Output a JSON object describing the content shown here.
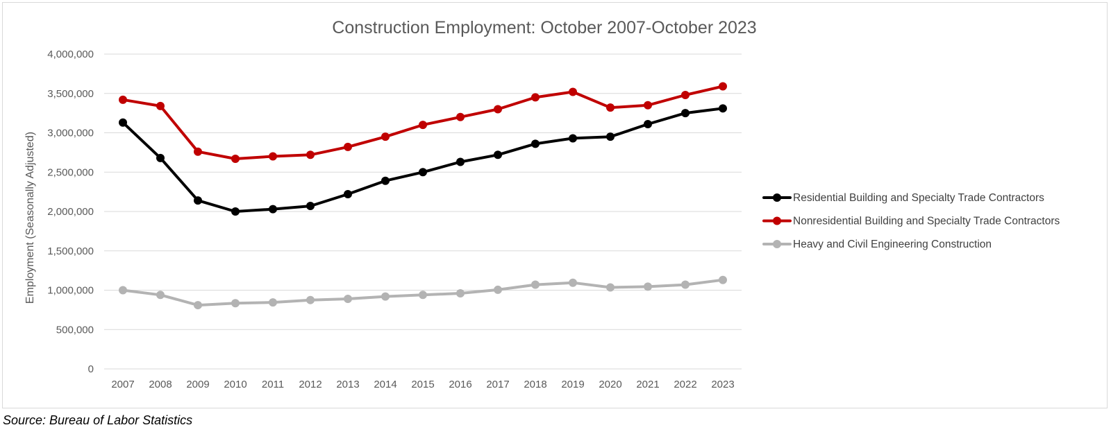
{
  "chart_data": {
    "type": "line",
    "title": "Construction Employment: October 2007-October 2023",
    "xlabel": "",
    "ylabel": "Employment (Seasonally Adjusted)",
    "x": [
      "2007",
      "2008",
      "2009",
      "2010",
      "2011",
      "2012",
      "2013",
      "2014",
      "2015",
      "2016",
      "2017",
      "2018",
      "2019",
      "2020",
      "2021",
      "2022",
      "2023"
    ],
    "ylim": [
      0,
      4000000
    ],
    "yticks": [
      0,
      500000,
      1000000,
      1500000,
      2000000,
      2500000,
      3000000,
      3500000,
      4000000
    ],
    "ytick_labels": [
      "0",
      "500,000",
      "1,000,000",
      "1,500,000",
      "2,000,000",
      "2,500,000",
      "3,000,000",
      "3,500,000",
      "4,000,000"
    ],
    "grid": true,
    "legend_position": "right",
    "series": [
      {
        "name": "Residential Building and Specialty Trade Contractors",
        "color": "#000000",
        "values": [
          3130000,
          2680000,
          2140000,
          2000000,
          2030000,
          2070000,
          2220000,
          2390000,
          2500000,
          2630000,
          2720000,
          2860000,
          2930000,
          2950000,
          3110000,
          3250000,
          3310000
        ]
      },
      {
        "name": "Nonresidential Building and Specialty Trade Contractors",
        "color": "#c00000",
        "values": [
          3420000,
          3340000,
          2760000,
          2670000,
          2700000,
          2720000,
          2820000,
          2950000,
          3100000,
          3200000,
          3300000,
          3450000,
          3520000,
          3320000,
          3350000,
          3480000,
          3590000
        ]
      },
      {
        "name": "Heavy and Civil Engineering Construction",
        "color": "#b3b3b3",
        "values": [
          1000000,
          940000,
          810000,
          835000,
          845000,
          875000,
          890000,
          920000,
          940000,
          960000,
          1005000,
          1070000,
          1095000,
          1035000,
          1045000,
          1070000,
          1130000
        ]
      }
    ]
  },
  "source": "Source: Bureau of Labor Statistics"
}
